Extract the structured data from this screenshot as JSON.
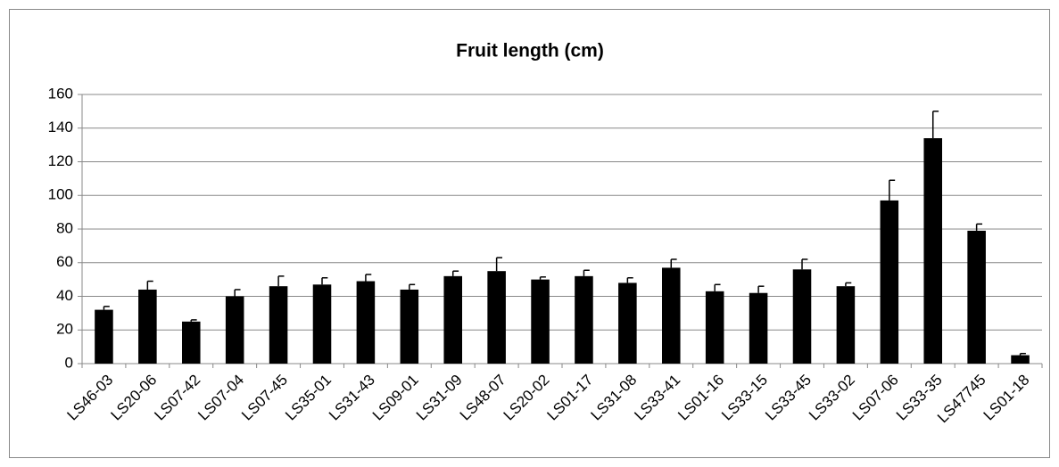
{
  "chart_data": {
    "type": "bar",
    "title": "Fruit length (cm)",
    "categories": [
      "LS46-03",
      "LS20-06",
      "LS07-42",
      "LS07-04",
      "LS07-45",
      "LS35-01",
      "LS31-43",
      "LS09-01",
      "LS31-09",
      "LS48-07",
      "LS20-02",
      "LS01-17",
      "LS31-08",
      "LS33-41",
      "LS01-16",
      "LS33-15",
      "LS33-45",
      "LS33-02",
      "LS07-06",
      "LS33-35",
      "LS47745",
      "LS01-18"
    ],
    "values": [
      32,
      44,
      25,
      40,
      46,
      47,
      49,
      44,
      52,
      55,
      50,
      52,
      48,
      57,
      43,
      42,
      56,
      46,
      97,
      134,
      79,
      5
    ],
    "errors": [
      2,
      5,
      1,
      4,
      6,
      4,
      4,
      3,
      3,
      8,
      1.5,
      3.5,
      3,
      5,
      4,
      4,
      6,
      2,
      12,
      16,
      4,
      1
    ],
    "color": "#000000",
    "ylim": [
      0,
      160
    ],
    "yticks": [
      0,
      20,
      40,
      60,
      80,
      100,
      120,
      140,
      160
    ],
    "grid": true
  }
}
